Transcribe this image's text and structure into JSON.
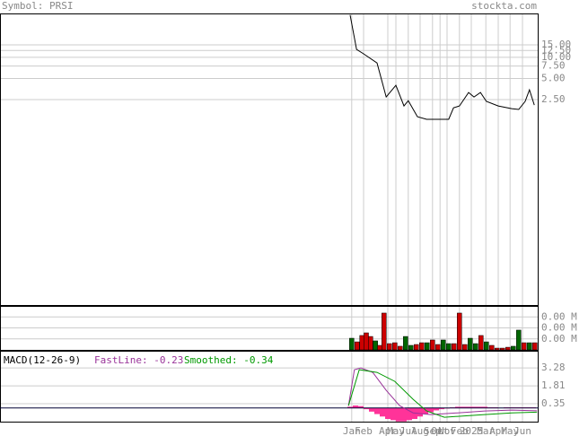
{
  "chart_data": [
    {
      "type": "line",
      "title": "Symbol: PRSI",
      "source": "stockta.com",
      "log_y": true,
      "color": "#000000",
      "xlim": [
        0,
        100
      ],
      "xticks": [
        {
          "value": 65.3,
          "label": "Jan"
        },
        {
          "value": 67.5,
          "label": "Feb"
        },
        {
          "value": 72,
          "label": "Apr"
        },
        {
          "value": 73.5,
          "label": "May"
        },
        {
          "value": 75.8,
          "label": "Jul"
        },
        {
          "value": 78,
          "label": "Aug"
        },
        {
          "value": 80.3,
          "label": "Sep"
        },
        {
          "value": 81.7,
          "label": "Oct"
        },
        {
          "value": 83,
          "label": "Nov"
        },
        {
          "value": 85.3,
          "label": "Feb"
        },
        {
          "value": 87.5,
          "label": "2025"
        },
        {
          "value": 90.2,
          "label": "Mar"
        },
        {
          "value": 92.5,
          "label": "Apr"
        },
        {
          "value": 94.7,
          "label": "May"
        },
        {
          "value": 97,
          "label": "Jun"
        }
      ],
      "ylim": [
        0.003,
        42
      ],
      "yticks": [
        {
          "value": 15,
          "label": "15.00"
        },
        {
          "value": 12.5,
          "label": "12.50"
        },
        {
          "value": 10,
          "label": "10.00"
        },
        {
          "value": 7.5,
          "label": "7.50"
        },
        {
          "value": 5,
          "label": "5.00"
        },
        {
          "value": 2.5,
          "label": "2.50"
        }
      ],
      "x": [
        65,
        66.2,
        67.5,
        70,
        71.7,
        73.5,
        75,
        75.8,
        77.5,
        79.2,
        83.3,
        84.2,
        85.3,
        87,
        88,
        89.2,
        90.3,
        92.5,
        95,
        96.3,
        97.5,
        98.3,
        99.2
      ],
      "values": [
        40,
        12.95,
        11.2,
        8.3,
        2.73,
        3.99,
        2.03,
        2.42,
        1.43,
        1.31,
        1.31,
        1.91,
        2.03,
        3.16,
        2.73,
        3.16,
        2.36,
        2.03,
        1.86,
        1.81,
        2.36,
        3.45,
        2.09
      ]
    },
    {
      "type": "bar",
      "ylim": [
        0,
        0.004
      ],
      "yticks": [
        {
          "value": 0.003,
          "label": "0.00 M"
        },
        {
          "value": 0.002,
          "label": "0.00 M"
        },
        {
          "value": 0.001,
          "label": "0.00 M"
        }
      ],
      "x": [
        65.3,
        66.3,
        67.2,
        68,
        68.8,
        69.7,
        70.5,
        71.3,
        72.3,
        73.3,
        74.3,
        75.3,
        76.3,
        77.3,
        78.3,
        79.3,
        80.3,
        81.3,
        82.3,
        83.3,
        84.3,
        85.3,
        86.3,
        87.3,
        88.3,
        89.3,
        90.3,
        91.3,
        92.3,
        93.3,
        94.3,
        95.3,
        96.3,
        97.3,
        98.3,
        99.3
      ],
      "values": [
        0.00106,
        0.00073,
        0.00131,
        0.00155,
        0.00122,
        0.00082,
        0.00041,
        0.00335,
        0.00057,
        0.00065,
        0.00033,
        0.00122,
        0.00041,
        0.00049,
        0.00065,
        0.00065,
        0.0009,
        0.00049,
        0.0009,
        0.00057,
        0.00057,
        0.00335,
        0.00049,
        0.00106,
        0.00057,
        0.00131,
        0.00073,
        0.00041,
        0.00016,
        0.00016,
        0.00024,
        0.00033,
        0.0018,
        0.00065,
        0.00065,
        0.00065
      ],
      "colors": [
        "#006600",
        "#cc0000",
        "#cc0000",
        "#cc0000",
        "#cc0000",
        "#006600",
        "#cc0000",
        "#cc0000",
        "#cc0000",
        "#cc0000",
        "#cc0000",
        "#006600",
        "#006600",
        "#cc0000",
        "#cc0000",
        "#006600",
        "#cc0000",
        "#cc0000",
        "#006600",
        "#006600",
        "#cc0000",
        "#cc0000",
        "#cc0000",
        "#006600",
        "#006600",
        "#cc0000",
        "#006600",
        "#cc0000",
        "#cc0000",
        "#cc0000",
        "#cc0000",
        "#006600",
        "#006600",
        "#cc0000",
        "#006600",
        "#cc0000"
      ]
    },
    {
      "type": "macd",
      "title": "MACD(12-26-9)",
      "ylim": [
        -1.12,
        4.68
      ],
      "yticks": [
        3.28,
        1.81,
        0.35
      ],
      "series": [
        {
          "name": "FastLine: -0.23",
          "color": "#993399",
          "x": [
            64.7,
            65.8,
            67,
            69.2,
            71.7,
            74.2,
            76.7,
            80,
            85,
            90,
            95,
            99.7
          ],
          "values": [
            0.19,
            3.13,
            3.28,
            2.91,
            1.44,
            0.19,
            -0.4,
            -0.54,
            -0.4,
            -0.25,
            -0.17,
            -0.23
          ]
        },
        {
          "name": "Smoothed: -0.34",
          "color": "#009900",
          "x": [
            64.7,
            66.7,
            70,
            73.3,
            76.7,
            79.2,
            82.5,
            85,
            90,
            95,
            99.7
          ],
          "values": [
            0.19,
            3.13,
            2.91,
            2.18,
            0.71,
            -0.25,
            -0.76,
            -0.69,
            -0.54,
            -0.4,
            -0.34
          ]
        }
      ],
      "histogram": {
        "color": "#ff3399",
        "x": [
          65,
          66,
          67,
          68,
          69,
          70,
          71,
          72,
          73,
          74,
          75,
          76,
          77,
          78,
          79,
          80,
          81,
          82,
          83,
          84,
          85,
          86,
          87,
          88,
          89,
          90,
          91,
          92,
          93,
          94,
          95,
          96,
          97,
          98,
          99
        ],
        "values": [
          0.1,
          0.2,
          0.15,
          -0.1,
          -0.3,
          -0.5,
          -0.7,
          -0.9,
          -1.0,
          -1.1,
          -1.1,
          -1.0,
          -0.9,
          -0.7,
          -0.5,
          -0.35,
          -0.2,
          -0.1,
          -0.05,
          0.05,
          0.1,
          0.1,
          0.1,
          0.1,
          0.1,
          0.1,
          0.05,
          0.05,
          0,
          0.05,
          0.05,
          0.05,
          0.05,
          0.05,
          0.05
        ]
      }
    }
  ]
}
